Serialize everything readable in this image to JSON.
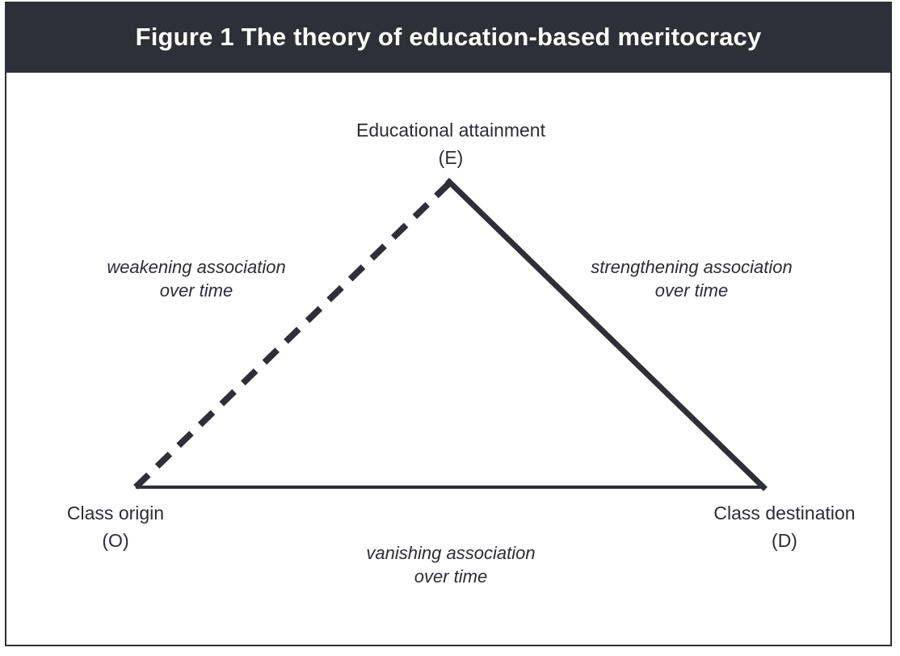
{
  "figure": {
    "title": "Figure 1 The theory of education-based meritocracy"
  },
  "nodes": {
    "education": {
      "name": "Educational attainment",
      "symbol": "(E)"
    },
    "origin": {
      "name": "Class origin",
      "symbol": "(O)"
    },
    "destination": {
      "name": "Class destination",
      "symbol": "(D)"
    }
  },
  "edges": {
    "origin_education": {
      "line1": "weakening association",
      "line2": "over time",
      "style": "dashed"
    },
    "education_destination": {
      "line1": "strengthening association",
      "line2": "over time",
      "style": "solid"
    },
    "origin_destination": {
      "line1": "vanishing association",
      "line2": "over time",
      "style": "solid"
    }
  },
  "colors": {
    "title_bar": "#2f2f37",
    "title_text": "#ffffff",
    "line": "#2f2f37"
  }
}
